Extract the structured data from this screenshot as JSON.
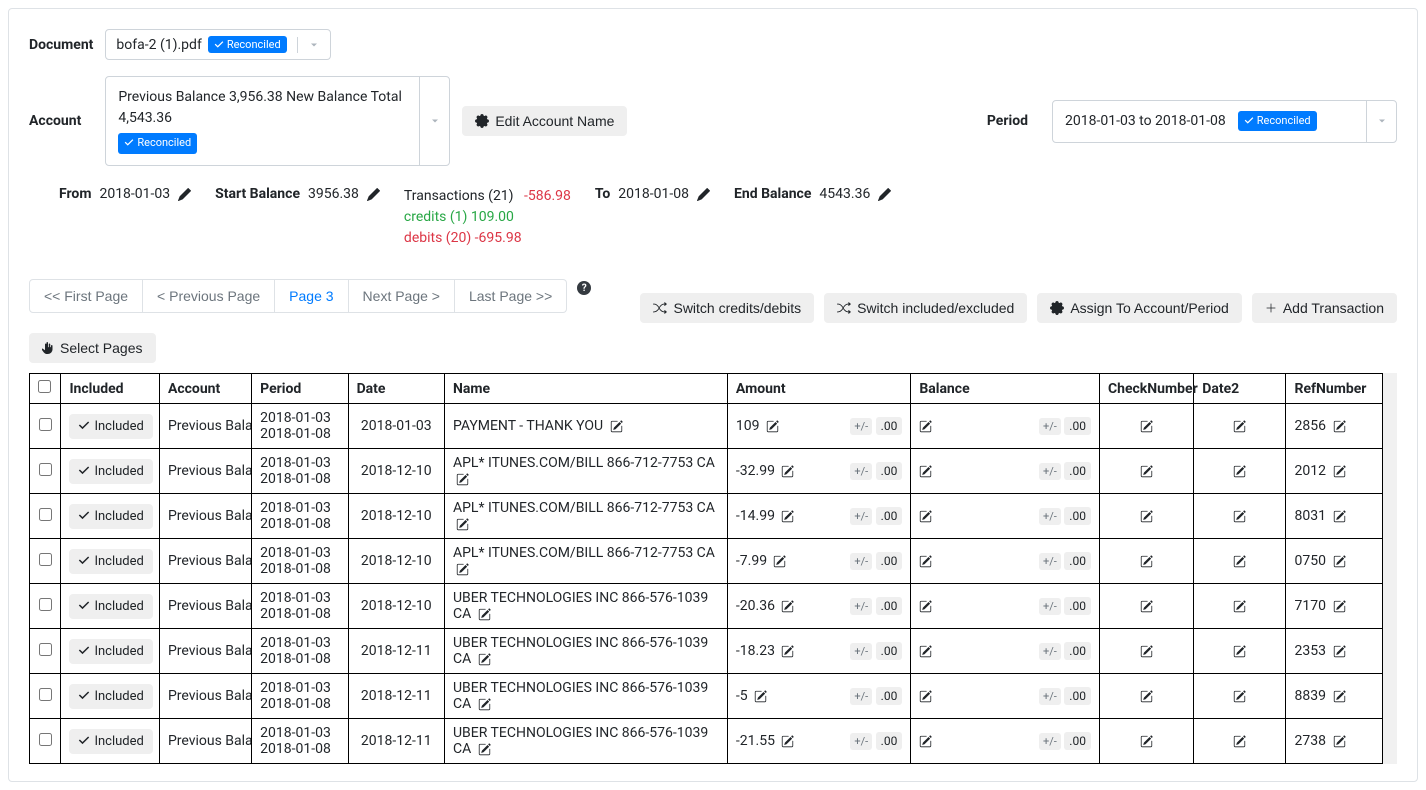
{
  "labels": {
    "document": "Document",
    "account": "Account",
    "period": "Period",
    "from": "From",
    "to": "To",
    "start_balance": "Start Balance",
    "end_balance": "End Balance",
    "edit_account": "Edit Account Name",
    "select_pages": "Select Pages",
    "switch_cd": "Switch credits/debits",
    "switch_ie": "Switch included/excluded",
    "assign": "Assign To Account/Period",
    "add_trans": "Add Transaction",
    "included_header": "Included",
    "account_header": "Account",
    "period_header": "Period",
    "date_header": "Date",
    "name_header": "Name",
    "amount_header": "Amount",
    "balance_header": "Balance",
    "checknum_header": "CheckNumber",
    "date2_header": "Date2",
    "ref_header": "RefNumber",
    "included_badge": "Included",
    "reconciled": "Reconciled",
    "pm": "+/-",
    "zeros": ".00"
  },
  "document": {
    "filename": "bofa-2 (1).pdf"
  },
  "account": {
    "text": "Previous Balance 3,956.38 New Balance Total 4,543.36"
  },
  "period": {
    "text": "2018-01-03 to 2018-01-08"
  },
  "summary": {
    "from_date": "2018-01-03",
    "to_date": "2018-01-08",
    "start_balance": "3956.38",
    "end_balance": "4543.36",
    "transactions_line": "Transactions (21)",
    "transactions_amount": "-586.98",
    "credits_line": "credits (1) 109.00",
    "debits_line": "debits (20) -695.98"
  },
  "pagination": {
    "first": "<< First Page",
    "prev": "< Previous Page",
    "current": "Page 3",
    "next": "Next Page >",
    "last": "Last Page >>"
  },
  "rows": [
    {
      "account": "Previous Balan",
      "period1": "2018-01-03",
      "period2": "2018-01-08",
      "date": "2018-01-03",
      "name": "PAYMENT - THANK YOU",
      "amount": "109",
      "ref": "2856"
    },
    {
      "account": "Previous Balan",
      "period1": "2018-01-03",
      "period2": "2018-01-08",
      "date": "2018-12-10",
      "name": "APL* ITUNES.COM/BILL 866-712-7753 CA",
      "amount": "-32.99",
      "ref": "2012"
    },
    {
      "account": "Previous Balan",
      "period1": "2018-01-03",
      "period2": "2018-01-08",
      "date": "2018-12-10",
      "name": "APL* ITUNES.COM/BILL 866-712-7753 CA",
      "amount": "-14.99",
      "ref": "8031"
    },
    {
      "account": "Previous Balan",
      "period1": "2018-01-03",
      "period2": "2018-01-08",
      "date": "2018-12-10",
      "name": "APL* ITUNES.COM/BILL 866-712-7753 CA",
      "amount": "-7.99",
      "ref": "0750"
    },
    {
      "account": "Previous Balan",
      "period1": "2018-01-03",
      "period2": "2018-01-08",
      "date": "2018-12-10",
      "name": "UBER TECHNOLOGIES INC 866-576-1039 CA",
      "amount": "-20.36",
      "ref": "7170"
    },
    {
      "account": "Previous Balan",
      "period1": "2018-01-03",
      "period2": "2018-01-08",
      "date": "2018-12-11",
      "name": "UBER TECHNOLOGIES INC 866-576-1039 CA",
      "amount": "-18.23",
      "ref": "2353"
    },
    {
      "account": "Previous Balan",
      "period1": "2018-01-03",
      "period2": "2018-01-08",
      "date": "2018-12-11",
      "name": "UBER TECHNOLOGIES INC 866-576-1039 CA",
      "amount": "-5",
      "ref": "8839"
    },
    {
      "account": "Previous Balan",
      "period1": "2018-01-03",
      "period2": "2018-01-08",
      "date": "2018-12-11",
      "name": "UBER TECHNOLOGIES INC 866-576-1039 CA",
      "amount": "-21.55",
      "ref": "2738"
    }
  ]
}
